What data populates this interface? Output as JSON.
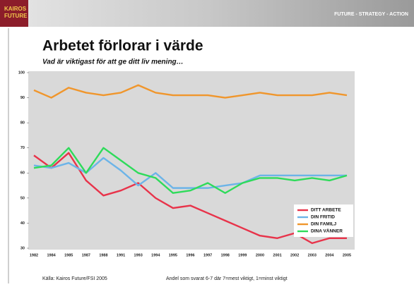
{
  "header": {
    "logo": [
      "KAIROS",
      "FUTURE"
    ],
    "tagline": "FUTURE - STRATEGY - ACTION"
  },
  "chart_data": {
    "type": "line",
    "title": "Arbetet förlorar i värde",
    "subtitle": "Vad är viktigast för att ge ditt liv mening…",
    "categories": [
      "1982",
      "1984",
      "1985",
      "1987",
      "1988",
      "1991",
      "1993",
      "1994",
      "1995",
      "1996",
      "1997",
      "1998",
      "1999",
      "2000",
      "2001",
      "2002",
      "2003",
      "2004",
      "2005"
    ],
    "series": [
      {
        "name": "DITT ARBETE",
        "color": "#e8334a",
        "values": [
          67,
          62,
          68,
          57,
          51,
          53,
          56,
          50,
          46,
          47,
          44,
          41,
          38,
          35,
          34,
          36,
          32,
          34,
          34
        ]
      },
      {
        "name": "DIN FRITID",
        "color": "#6cb4e8",
        "values": [
          63,
          62,
          64,
          60,
          66,
          61,
          55,
          60,
          54,
          54,
          54,
          55,
          56,
          59,
          59,
          59,
          59,
          59,
          59
        ]
      },
      {
        "name": "DIN FAMILJ",
        "color": "#f0962c",
        "values": [
          93,
          90,
          94,
          92,
          91,
          92,
          95,
          92,
          91,
          91,
          91,
          90,
          91,
          92,
          91,
          91,
          91,
          92,
          91
        ]
      },
      {
        "name": "DINA VÄNNER",
        "color": "#2edb5a",
        "values": [
          62,
          63,
          70,
          60,
          70,
          65,
          60,
          58,
          52,
          53,
          56,
          52,
          56,
          58,
          58,
          57,
          58,
          57,
          59
        ]
      }
    ],
    "ylim": [
      30,
      100
    ],
    "yticks": [
      30,
      40,
      50,
      60,
      70,
      80,
      90,
      100
    ],
    "legend": "lower-right"
  },
  "footer": {
    "source": "Källa: Kairos Future/FSI 2005",
    "note": "Andel som svarat 6-7 där 7=mest viktigt, 1=minst viktigt"
  }
}
